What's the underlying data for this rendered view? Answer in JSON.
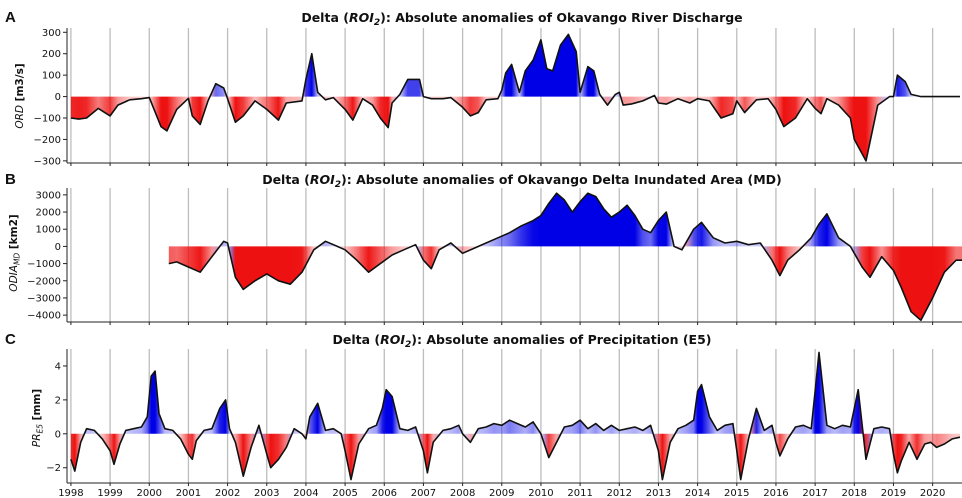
{
  "chart_data": [
    {
      "type": "area",
      "panel_label": "A",
      "title_prefix": "Delta (",
      "title_roi": "ROI",
      "title_roi_sub": "2",
      "title_suffix": "): Absolute anomalies of Okavango River Discharge",
      "ylabel_main": "ORD",
      "ylabel_sub": "",
      "ylabel_unit": " [m3/s]",
      "ylim": [
        -310,
        320
      ],
      "yticks": [
        300,
        200,
        100,
        0,
        -100,
        -200,
        -300
      ],
      "ytick_labels": [
        "300",
        "200",
        "100",
        "0",
        "−100",
        "−200",
        "−300"
      ],
      "x": [
        1998.0,
        1998.2,
        1998.4,
        1998.7,
        1999.0,
        1999.2,
        1999.5,
        1999.8,
        2000.0,
        2000.3,
        2000.45,
        2000.7,
        2001.0,
        2001.1,
        2001.3,
        2001.5,
        2001.7,
        2001.9,
        2002.0,
        2002.2,
        2002.4,
        2002.7,
        2003.0,
        2003.3,
        2003.5,
        2003.9,
        2004.0,
        2004.15,
        2004.3,
        2004.5,
        2004.7,
        2005.0,
        2005.2,
        2005.45,
        2005.7,
        2005.9,
        2006.1,
        2006.2,
        2006.4,
        2006.6,
        2006.9,
        2007.0,
        2007.2,
        2007.5,
        2007.7,
        2008.0,
        2008.2,
        2008.4,
        2008.6,
        2008.9,
        2009.0,
        2009.1,
        2009.25,
        2009.45,
        2009.6,
        2009.8,
        2010.0,
        2010.15,
        2010.3,
        2010.5,
        2010.7,
        2010.9,
        2011.0,
        2011.2,
        2011.35,
        2011.5,
        2011.7,
        2011.9,
        2012.0,
        2012.1,
        2012.3,
        2012.6,
        2012.9,
        2013.0,
        2013.2,
        2013.5,
        2013.8,
        2014.0,
        2014.3,
        2014.6,
        2014.9,
        2015.0,
        2015.2,
        2015.5,
        2015.8,
        2016.0,
        2016.2,
        2016.5,
        2016.8,
        2017.0,
        2017.15,
        2017.3,
        2017.6,
        2017.9,
        2018.0,
        2018.3,
        2018.6,
        2018.9,
        2019.0,
        2019.1,
        2019.3,
        2019.45,
        2019.7,
        2020.0,
        2020.2,
        2020.35,
        2020.5,
        2020.7
      ],
      "values": [
        -100,
        -105,
        -100,
        -55,
        -90,
        -40,
        -15,
        -10,
        -5,
        -140,
        -160,
        -60,
        -8,
        -90,
        -130,
        -20,
        60,
        40,
        -10,
        -120,
        -90,
        -20,
        -60,
        -110,
        -30,
        -20,
        80,
        200,
        20,
        -15,
        -5,
        -60,
        -110,
        -10,
        -40,
        -100,
        -145,
        -30,
        10,
        80,
        80,
        0,
        -10,
        -10,
        -5,
        -50,
        -90,
        -75,
        -15,
        -10,
        30,
        110,
        150,
        20,
        120,
        170,
        265,
        130,
        120,
        240,
        290,
        210,
        20,
        140,
        120,
        10,
        -40,
        10,
        20,
        -40,
        -35,
        -20,
        5,
        -30,
        -35,
        -10,
        -30,
        -10,
        -20,
        -100,
        -80,
        -20,
        -75,
        -15,
        -10,
        -60,
        -140,
        -100,
        -10,
        -55,
        -80,
        -10,
        -40,
        -100,
        -200,
        -300,
        -40,
        0,
        0,
        100,
        70,
        10,
        0,
        0,
        0,
        0,
        0,
        0
      ],
      "xlim": [
        1997.9,
        2020.75
      ]
    },
    {
      "type": "area",
      "panel_label": "B",
      "title_prefix": "Delta (",
      "title_roi": "ROI",
      "title_roi_sub": "2",
      "title_suffix": "): Absolute anomalies of Okavango Delta Inundated Area (MD)",
      "ylabel_main": "ODIA",
      "ylabel_sub": "MD",
      "ylabel_unit": " [km2]",
      "ylim": [
        -4400,
        3400
      ],
      "yticks": [
        3000,
        2000,
        1000,
        0,
        -1000,
        -2000,
        -3000,
        -4000
      ],
      "ytick_labels": [
        "3000",
        "2000",
        "1000",
        "0",
        "−1000",
        "−2000",
        "−3000",
        "−4000"
      ],
      "x": [
        2000.5,
        2000.7,
        2001.0,
        2001.3,
        2001.6,
        2001.9,
        2002.0,
        2002.2,
        2002.4,
        2002.7,
        2003.0,
        2003.3,
        2003.6,
        2003.9,
        2004.2,
        2004.5,
        2004.8,
        2005.0,
        2005.3,
        2005.6,
        2005.9,
        2006.2,
        2006.5,
        2006.8,
        2007.0,
        2007.2,
        2007.4,
        2007.7,
        2008.0,
        2008.3,
        2008.6,
        2008.9,
        2009.2,
        2009.5,
        2009.8,
        2010.0,
        2010.2,
        2010.4,
        2010.6,
        2010.8,
        2011.0,
        2011.2,
        2011.4,
        2011.6,
        2011.8,
        2012.0,
        2012.2,
        2012.4,
        2012.6,
        2012.8,
        2013.0,
        2013.2,
        2013.4,
        2013.6,
        2013.9,
        2014.1,
        2014.4,
        2014.7,
        2015.0,
        2015.3,
        2015.6,
        2015.9,
        2016.1,
        2016.3,
        2016.6,
        2016.9,
        2017.1,
        2017.3,
        2017.6,
        2017.9,
        2018.2,
        2018.4,
        2018.7,
        2019.0,
        2019.2,
        2019.45,
        2019.7,
        2020.0,
        2020.3,
        2020.6,
        2020.75
      ],
      "values": [
        -1000,
        -900,
        -1200,
        -1500,
        -600,
        300,
        200,
        -1800,
        -2500,
        -2000,
        -1600,
        -2000,
        -2200,
        -1500,
        -200,
        300,
        0,
        -200,
        -800,
        -1500,
        -1000,
        -500,
        -200,
        100,
        -800,
        -1300,
        -200,
        200,
        -400,
        -100,
        200,
        500,
        800,
        1200,
        1500,
        1800,
        2500,
        3100,
        2700,
        2000,
        2600,
        3100,
        2900,
        2200,
        1700,
        2000,
        2400,
        1800,
        1000,
        800,
        1500,
        2000,
        0,
        -200,
        1000,
        1400,
        500,
        200,
        300,
        100,
        200,
        -800,
        -1700,
        -800,
        -200,
        500,
        1300,
        1900,
        500,
        0,
        -1200,
        -1800,
        -600,
        -1400,
        -2400,
        -3800,
        -4300,
        -3000,
        -1500,
        -800,
        -800
      ],
      "xlim": [
        1997.9,
        2020.75
      ]
    },
    {
      "type": "area",
      "panel_label": "C",
      "title_prefix": "Delta (",
      "title_roi": "ROI",
      "title_roi_sub": "2",
      "title_suffix": "): Absolute anomalies of Precipitation (E5)",
      "ylabel_main": "PR",
      "ylabel_sub": "E5",
      "ylabel_unit": " [mm]",
      "ylim": [
        -2.9,
        5.0
      ],
      "yticks": [
        4,
        2,
        0,
        -2
      ],
      "ytick_labels": [
        "4",
        "2",
        "0",
        "−2"
      ],
      "x": [
        1998.0,
        1998.1,
        1998.25,
        1998.4,
        1998.6,
        1998.8,
        1999.0,
        1999.1,
        1999.25,
        1999.4,
        1999.6,
        1999.8,
        1999.95,
        2000.05,
        2000.15,
        2000.25,
        2000.4,
        2000.6,
        2000.8,
        2001.0,
        2001.1,
        2001.2,
        2001.4,
        2001.6,
        2001.8,
        2001.95,
        2002.05,
        2002.2,
        2002.4,
        2002.6,
        2002.8,
        2003.0,
        2003.1,
        2003.3,
        2003.5,
        2003.7,
        2003.9,
        2004.0,
        2004.1,
        2004.3,
        2004.5,
        2004.7,
        2004.9,
        2005.0,
        2005.15,
        2005.35,
        2005.6,
        2005.8,
        2005.95,
        2006.05,
        2006.2,
        2006.4,
        2006.6,
        2006.8,
        2007.0,
        2007.1,
        2007.25,
        2007.5,
        2007.7,
        2007.9,
        2008.0,
        2008.2,
        2008.4,
        2008.6,
        2008.8,
        2009.0,
        2009.2,
        2009.4,
        2009.6,
        2009.8,
        2010.0,
        2010.2,
        2010.4,
        2010.6,
        2010.8,
        2011.0,
        2011.2,
        2011.4,
        2011.6,
        2011.8,
        2012.0,
        2012.2,
        2012.4,
        2012.6,
        2012.8,
        2013.0,
        2013.1,
        2013.3,
        2013.5,
        2013.7,
        2013.9,
        2014.0,
        2014.1,
        2014.3,
        2014.5,
        2014.7,
        2014.9,
        2015.0,
        2015.1,
        2015.3,
        2015.5,
        2015.7,
        2015.9,
        2016.0,
        2016.1,
        2016.3,
        2016.5,
        2016.7,
        2016.9,
        2017.0,
        2017.1,
        2017.3,
        2017.5,
        2017.7,
        2017.9,
        2018.0,
        2018.1,
        2018.3,
        2018.5,
        2018.7,
        2018.9,
        2019.0,
        2019.1,
        2019.2,
        2019.4,
        2019.6,
        2019.8,
        2019.95,
        2020.1,
        2020.3,
        2020.5,
        2020.7
      ],
      "values": [
        -1.5,
        -2.2,
        -0.5,
        0.3,
        0.2,
        -0.3,
        -1.0,
        -1.8,
        -0.6,
        0.2,
        0.3,
        0.4,
        1.0,
        3.4,
        3.7,
        1.2,
        0.3,
        0.2,
        -0.3,
        -1.2,
        -1.5,
        -0.4,
        0.2,
        0.3,
        1.5,
        2.0,
        0.3,
        -0.5,
        -2.5,
        -0.8,
        0.5,
        -1.2,
        -2.0,
        -1.5,
        -0.8,
        0.3,
        0.0,
        -0.3,
        1.0,
        1.8,
        0.2,
        0.3,
        0.0,
        -1.0,
        -2.7,
        -0.6,
        0.3,
        0.5,
        1.5,
        2.6,
        2.2,
        0.3,
        0.2,
        0.4,
        -1.0,
        -2.3,
        -0.5,
        0.2,
        0.3,
        0.5,
        0.0,
        -0.5,
        0.3,
        0.4,
        0.6,
        0.5,
        0.8,
        0.6,
        0.4,
        0.7,
        0.0,
        -1.4,
        -0.5,
        0.4,
        0.5,
        0.8,
        0.3,
        0.6,
        0.2,
        0.5,
        0.2,
        0.3,
        0.4,
        0.2,
        0.5,
        -1.0,
        -2.7,
        -0.5,
        0.3,
        0.5,
        0.8,
        2.5,
        2.9,
        1.0,
        0.2,
        0.5,
        0.6,
        -1.0,
        -2.7,
        -0.3,
        1.5,
        0.2,
        0.5,
        -0.5,
        -1.3,
        -0.3,
        0.4,
        0.5,
        0.3,
        2.5,
        4.8,
        0.5,
        0.3,
        0.5,
        0.4,
        1.5,
        2.6,
        -1.5,
        0.3,
        0.4,
        0.3,
        -1.2,
        -2.3,
        -1.6,
        -0.5,
        -1.5,
        -0.6,
        -0.5,
        -0.8,
        -0.6,
        -0.3,
        -0.2
      ],
      "xlim": [
        1997.9,
        2020.75
      ]
    }
  ],
  "xaxis": {
    "tick_labels": [
      "1998",
      "1999",
      "2000",
      "2001",
      "2002",
      "2003",
      "2004",
      "2005",
      "2006",
      "2007",
      "2008",
      "2009",
      "2010",
      "2011",
      "2012",
      "2013",
      "2014",
      "2015",
      "2016",
      "2017",
      "2018",
      "2019",
      "2020"
    ],
    "tick_values": [
      1998,
      1999,
      2000,
      2001,
      2002,
      2003,
      2004,
      2005,
      2006,
      2007,
      2008,
      2009,
      2010,
      2011,
      2012,
      2013,
      2014,
      2015,
      2016,
      2017,
      2018,
      2019,
      2020
    ]
  },
  "colors": {
    "positive": "#0000e6",
    "negative": "#ee1111",
    "line": "#111111",
    "grid": "#bdbdbd"
  }
}
